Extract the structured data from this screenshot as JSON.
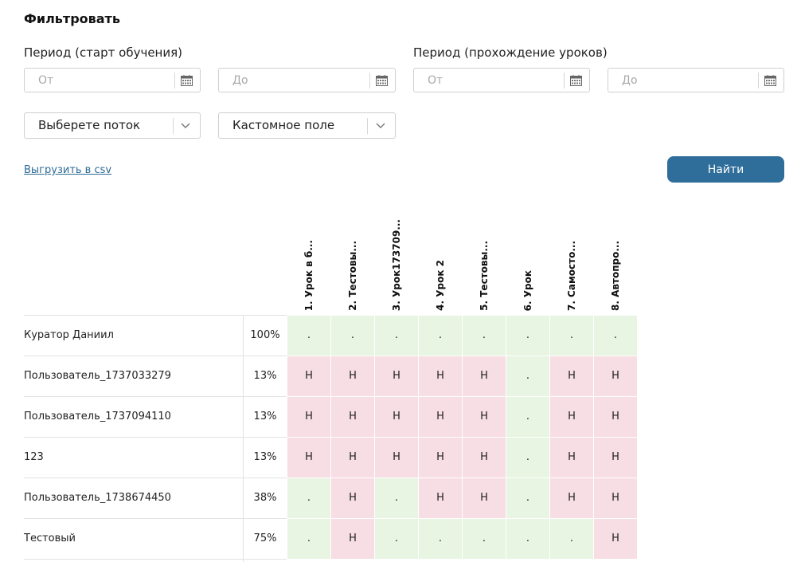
{
  "filter": {
    "title": "Фильтровать",
    "period_start_label": "Период (старт обучения)",
    "period_lessons_label": "Период (прохождение уроков)",
    "from_placeholder": "От",
    "to_placeholder": "До",
    "stream_select": "Выберете поток",
    "custom_field_select": "Кастомное поле",
    "export_link": "Выгрузить в csv",
    "find_button": "Найти"
  },
  "table": {
    "columns": [
      "1. Урок в б...",
      "2. Тестовы...",
      "3. Урок173709...",
      "4. Урок 2",
      "5. Тестовы...",
      "6. Урок",
      "7. Самосто...",
      "8. Автопро..."
    ],
    "rows": [
      {
        "name": "Куратор Даниил",
        "percent": "100%",
        "cells": [
          ".",
          ".",
          ".",
          ".",
          ".",
          ".",
          ".",
          "."
        ]
      },
      {
        "name": "Пользователь_1737033279",
        "percent": "13%",
        "cells": [
          "Н",
          "Н",
          "Н",
          "Н",
          "Н",
          ".",
          "Н",
          "Н"
        ]
      },
      {
        "name": "Пользователь_1737094110",
        "percent": "13%",
        "cells": [
          "Н",
          "Н",
          "Н",
          "Н",
          "Н",
          ".",
          "Н",
          "Н"
        ]
      },
      {
        "name": "123",
        "percent": "13%",
        "cells": [
          "Н",
          "Н",
          "Н",
          "Н",
          "Н",
          ".",
          "Н",
          "Н"
        ]
      },
      {
        "name": "Пользователь_1738674450",
        "percent": "38%",
        "cells": [
          ".",
          "Н",
          ".",
          "Н",
          "Н",
          ".",
          "Н",
          "Н"
        ]
      },
      {
        "name": "Тестовый",
        "percent": "75%",
        "cells": [
          ".",
          "Н",
          ".",
          ".",
          ".",
          ".",
          ".",
          "Н"
        ]
      }
    ]
  },
  "colors": {
    "accent": "#2f6d9a",
    "link": "#2d6b96",
    "passed_cell": "#e7f5e2",
    "missed_cell": "#f7dde4"
  },
  "icons": {
    "date_picker": "calendar-icon",
    "select_toggle": "chevron-down-icon"
  }
}
